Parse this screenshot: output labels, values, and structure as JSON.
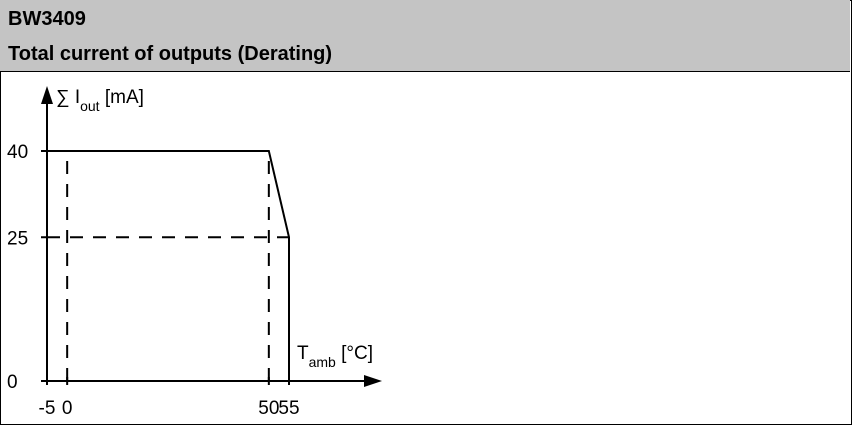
{
  "header": {
    "title": "BW3409",
    "subtitle": "Total current of outputs (Derating)"
  },
  "chart_data": {
    "type": "line",
    "title": "Total current of outputs (Derating)",
    "ylabel": {
      "prefix": "∑ I",
      "sub": "out",
      "suffix": " [mA]"
    },
    "xlabel": {
      "prefix": "T",
      "sub": "amb",
      "suffix": " [°C]"
    },
    "xlim": [
      -5,
      55
    ],
    "ylim": [
      0,
      40
    ],
    "x_ticks": [
      "-5",
      "0",
      "50",
      "55"
    ],
    "y_ticks": [
      "0",
      "25",
      "40"
    ],
    "series": [
      {
        "x": [
          -5,
          50,
          55,
          55
        ],
        "y": [
          40,
          40,
          25,
          0
        ]
      }
    ],
    "reference_lines": [
      {
        "x": [
          0,
          0
        ],
        "y": [
          0,
          40
        ]
      },
      {
        "x": [
          50,
          50
        ],
        "y": [
          0,
          40
        ]
      },
      {
        "x": [
          -5,
          55
        ],
        "y": [
          25,
          25
        ]
      }
    ]
  }
}
